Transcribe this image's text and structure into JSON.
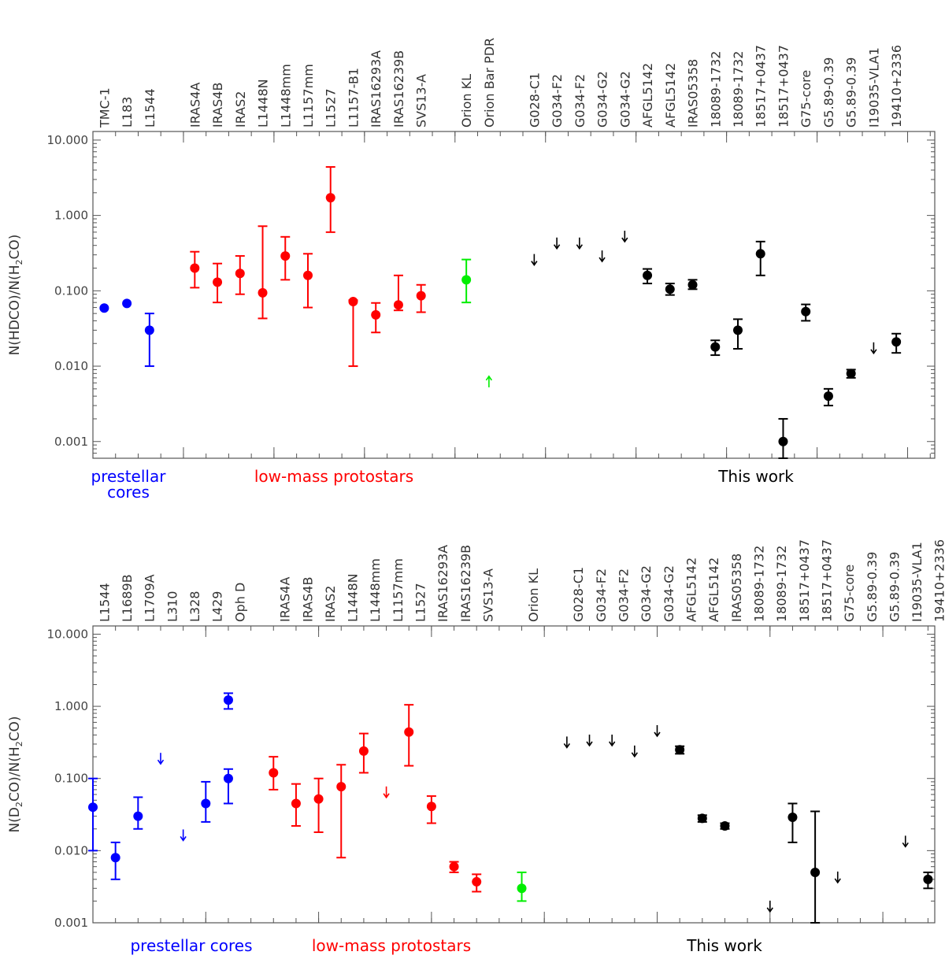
{
  "chart_data": [
    {
      "type": "scatter",
      "ylabel": "N(HDCO)/N(H2CO)",
      "ylabel_parts": [
        "N(HDCO)/N(H",
        "2",
        "CO)"
      ],
      "yscale": "log",
      "ylim": [
        0.0006,
        13
      ],
      "ytick_labels": [
        "0.001",
        "0.010",
        "0.100",
        "1.000",
        "10.000"
      ],
      "ytick_values": [
        0.001,
        0.01,
        0.1,
        1,
        10
      ],
      "xlim": [
        0,
        37.2
      ],
      "xtick_positions": [
        4,
        8,
        12,
        16,
        20,
        24,
        28,
        32,
        36
      ],
      "categories": [
        "TMC-1",
        "L183",
        "L1544",
        "IRAS4A",
        "IRAS4B",
        "IRAS2",
        "L1448N",
        "L1448mm",
        "L1157mm",
        "L1527",
        "L1157-B1",
        "IRAS16293A",
        "IRAS16239B",
        "SVS13-A",
        "Orion KL",
        "Orion Bar PDR",
        "G028-C1",
        "G034-F2",
        "G034-F2",
        "G034-G2",
        "G034-G2",
        "AFGL5142",
        "AFGL5142",
        "IRAS05358",
        "18089-1732",
        "18089-1732",
        "18517+0437",
        "18517+0437",
        "G75-core",
        "G5.89-0.39",
        "G5.89-0.39",
        "I19035-VLA1",
        "19410+2336"
      ],
      "category_x": [
        0.5,
        1.5,
        2.5,
        4.5,
        5.5,
        6.5,
        7.5,
        8.5,
        9.5,
        10.5,
        11.5,
        12.5,
        13.5,
        14.5,
        16.5,
        17.5,
        19.5,
        20.5,
        21.5,
        22.5,
        23.5,
        24.5,
        25.5,
        26.5,
        27.5,
        28.5,
        29.5,
        30.5,
        31.5,
        32.5,
        33.5,
        34.5,
        35.5
      ],
      "groups": [
        {
          "label": [
            "prestellar",
            "cores"
          ],
          "color": "#0000ff"
        },
        {
          "label": [
            "low-mass protostars"
          ],
          "color": "#ff0000"
        },
        {
          "label": [
            "This work"
          ],
          "color": "#000000"
        }
      ],
      "series": [
        {
          "name": "prestellar cores",
          "color": "#0000ff",
          "points": [
            {
              "x": 0.5,
              "y": 0.059
            },
            {
              "x": 1.5,
              "y": 0.068
            },
            {
              "x": 2.5,
              "y": 0.03,
              "lo": 0.01,
              "hi": 0.05
            }
          ]
        },
        {
          "name": "low-mass protostars",
          "color": "#ff0000",
          "points": [
            {
              "x": 4.5,
              "y": 0.2,
              "lo": 0.11,
              "hi": 0.33
            },
            {
              "x": 5.5,
              "y": 0.13,
              "lo": 0.07,
              "hi": 0.23
            },
            {
              "x": 6.5,
              "y": 0.17,
              "lo": 0.09,
              "hi": 0.29
            },
            {
              "x": 7.5,
              "y": 0.094,
              "lo": 0.043,
              "hi": 0.72
            },
            {
              "x": 8.5,
              "y": 0.29,
              "lo": 0.14,
              "hi": 0.52
            },
            {
              "x": 9.5,
              "y": 0.16,
              "lo": 0.06,
              "hi": 0.31
            },
            {
              "x": 10.5,
              "y": 1.72,
              "lo": 0.6,
              "hi": 4.4
            },
            {
              "x": 11.5,
              "y": 0.072,
              "lo": 0.01,
              "hi": 0.075
            },
            {
              "x": 12.5,
              "y": 0.048,
              "lo": 0.028,
              "hi": 0.069
            },
            {
              "x": 13.5,
              "y": 0.065,
              "lo": 0.055,
              "hi": 0.16
            },
            {
              "x": 14.5,
              "y": 0.086,
              "lo": 0.052,
              "hi": 0.12
            }
          ]
        },
        {
          "name": "Orion",
          "color": "#00ee00",
          "points": [
            {
              "x": 16.5,
              "y": 0.14,
              "lo": 0.07,
              "hi": 0.26
            }
          ],
          "lower_limits": [
            {
              "x": 17.5,
              "y": 0.0062
            }
          ]
        },
        {
          "name": "This work",
          "color": "#000000",
          "points": [
            {
              "x": 24.5,
              "y": 0.16,
              "lo": 0.125,
              "hi": 0.195
            },
            {
              "x": 25.5,
              "y": 0.105,
              "lo": 0.088,
              "hi": 0.125
            },
            {
              "x": 26.5,
              "y": 0.12,
              "lo": 0.105,
              "hi": 0.14
            },
            {
              "x": 27.5,
              "y": 0.018,
              "lo": 0.014,
              "hi": 0.022
            },
            {
              "x": 28.5,
              "y": 0.03,
              "lo": 0.017,
              "hi": 0.042
            },
            {
              "x": 29.5,
              "y": 0.31,
              "lo": 0.16,
              "hi": 0.45
            },
            {
              "x": 30.5,
              "y": 0.001,
              "lo": 0.0006,
              "hi": 0.002
            },
            {
              "x": 31.5,
              "y": 0.053,
              "lo": 0.04,
              "hi": 0.066
            },
            {
              "x": 32.5,
              "y": 0.004,
              "lo": 0.003,
              "hi": 0.005
            },
            {
              "x": 33.5,
              "y": 0.008,
              "lo": 0.007,
              "hi": 0.009
            },
            {
              "x": 35.5,
              "y": 0.021,
              "lo": 0.015,
              "hi": 0.027
            }
          ],
          "upper_limits": [
            {
              "x": 19.5,
              "y": 0.26
            },
            {
              "x": 20.5,
              "y": 0.43
            },
            {
              "x": 21.5,
              "y": 0.43
            },
            {
              "x": 22.5,
              "y": 0.29
            },
            {
              "x": 23.5,
              "y": 0.53
            },
            {
              "x": 34.5,
              "y": 0.0175
            }
          ]
        }
      ]
    },
    {
      "type": "scatter",
      "ylabel": "N(D2CO)/N(H2CO)",
      "ylabel_parts": [
        "N(D",
        "2",
        "CO)/N(H",
        "2",
        "CO)"
      ],
      "yscale": "log",
      "ylim": [
        0.001,
        13
      ],
      "ytick_labels": [
        "0.001",
        "0.010",
        "0.100",
        "1.000",
        "10.000"
      ],
      "ytick_values": [
        0.001,
        0.01,
        0.1,
        1,
        10
      ],
      "xlim": [
        0,
        37.3
      ],
      "xtick_positions": [
        5,
        10,
        15,
        20,
        25,
        30,
        35
      ],
      "categories": [
        "L1544",
        "L1689B",
        "L1709A",
        "L310",
        "L328",
        "L429",
        "Oph D",
        "IRAS4A",
        "IRAS4B",
        "IRAS2",
        "L1448N",
        "L1448mm",
        "L1157mm",
        "L1527",
        "IRAS16293A",
        "IRAS16239B",
        "SVS13-A",
        "Orion KL",
        "G028-C1",
        "G034-F2",
        "G034-F2",
        "G034-G2",
        "G034-G2",
        "AFGL5142",
        "AFGL5142",
        "IRAS05358",
        "18089-1732",
        "18089-1732",
        "18517+0437",
        "18517+0437",
        "G75-core",
        "G5.89-0.39",
        "G5.89-0.39",
        "I19035-VLA1",
        "19410+2336"
      ],
      "category_x": [
        0.5,
        1.5,
        2.5,
        3.5,
        4.5,
        5.5,
        6.5,
        8.5,
        9.5,
        10.5,
        11.5,
        12.5,
        13.5,
        14.5,
        15.5,
        16.5,
        17.5,
        19.5,
        21.5,
        22.5,
        23.5,
        24.5,
        25.5,
        26.5,
        27.5,
        28.5,
        29.5,
        30.5,
        31.5,
        32.5,
        33.5,
        34.5,
        35.5,
        36.5,
        37.5
      ],
      "groups": [
        {
          "label": [
            "prestellar cores"
          ],
          "color": "#0000ff"
        },
        {
          "label": [
            "low-mass protostars"
          ],
          "color": "#ff0000"
        },
        {
          "label": [
            "This work"
          ],
          "color": "#000000"
        }
      ],
      "series": [
        {
          "name": "prestellar cores",
          "color": "#0000ff",
          "points": [
            {
              "x": 0,
              "y": 0.04,
              "lo": 0.01,
              "hi": 0.1
            },
            {
              "x": 1,
              "y": 0.008,
              "lo": 0.004,
              "hi": 0.013
            },
            {
              "x": 2,
              "y": 0.03,
              "lo": 0.02,
              "hi": 0.055
            },
            {
              "x": 5,
              "y": 0.045,
              "lo": 0.025,
              "hi": 0.09
            },
            {
              "x": 6,
              "y": 1.22,
              "lo": 0.92,
              "hi": 1.52
            },
            {
              "x": 6,
              "y": 0.1,
              "lo": 0.045,
              "hi": 0.135
            }
          ],
          "upper_limits": [
            {
              "x": 3,
              "y": 0.19
            },
            {
              "x": 4,
              "y": 0.0165
            }
          ]
        },
        {
          "name": "low-mass protostars",
          "color": "#ff0000",
          "points": [
            {
              "x": 8,
              "y": 0.12,
              "lo": 0.07,
              "hi": 0.2
            },
            {
              "x": 9,
              "y": 0.045,
              "lo": 0.022,
              "hi": 0.084
            },
            {
              "x": 10,
              "y": 0.052,
              "lo": 0.018,
              "hi": 0.1
            },
            {
              "x": 11,
              "y": 0.077,
              "lo": 0.008,
              "hi": 0.155
            },
            {
              "x": 12,
              "y": 0.24,
              "lo": 0.12,
              "hi": 0.42
            },
            {
              "x": 14,
              "y": 0.44,
              "lo": 0.15,
              "hi": 1.05
            },
            {
              "x": 15,
              "y": 0.041,
              "lo": 0.024,
              "hi": 0.057
            },
            {
              "x": 16,
              "y": 0.006,
              "lo": 0.005,
              "hi": 0.007
            },
            {
              "x": 17,
              "y": 0.0037,
              "lo": 0.0027,
              "hi": 0.0047
            }
          ],
          "upper_limits": [
            {
              "x": 13,
              "y": 0.065
            }
          ]
        },
        {
          "name": "Orion KL",
          "color": "#00ee00",
          "points": [
            {
              "x": 19,
              "y": 0.003,
              "lo": 0.002,
              "hi": 0.005
            }
          ]
        },
        {
          "name": "This work",
          "color": "#000000",
          "points": [
            {
              "x": 26,
              "y": 0.25,
              "lo": 0.22,
              "hi": 0.28
            },
            {
              "x": 27,
              "y": 0.028,
              "lo": 0.025,
              "hi": 0.031
            },
            {
              "x": 28,
              "y": 0.022,
              "lo": 0.02,
              "hi": 0.024
            },
            {
              "x": 31,
              "y": 0.029,
              "lo": 0.013,
              "hi": 0.045
            },
            {
              "x": 32,
              "y": 0.005,
              "lo": 0.001,
              "hi": 0.035
            },
            {
              "x": 37,
              "y": 0.004,
              "lo": 0.003,
              "hi": 0.005
            }
          ],
          "upper_limits": [
            {
              "x": 21,
              "y": 0.32
            },
            {
              "x": 22,
              "y": 0.34
            },
            {
              "x": 23,
              "y": 0.34
            },
            {
              "x": 24,
              "y": 0.24
            },
            {
              "x": 25,
              "y": 0.46
            },
            {
              "x": 30,
              "y": 0.0017
            },
            {
              "x": 33,
              "y": 0.0043
            },
            {
              "x": 36,
              "y": 0.0135
            }
          ]
        }
      ]
    }
  ]
}
